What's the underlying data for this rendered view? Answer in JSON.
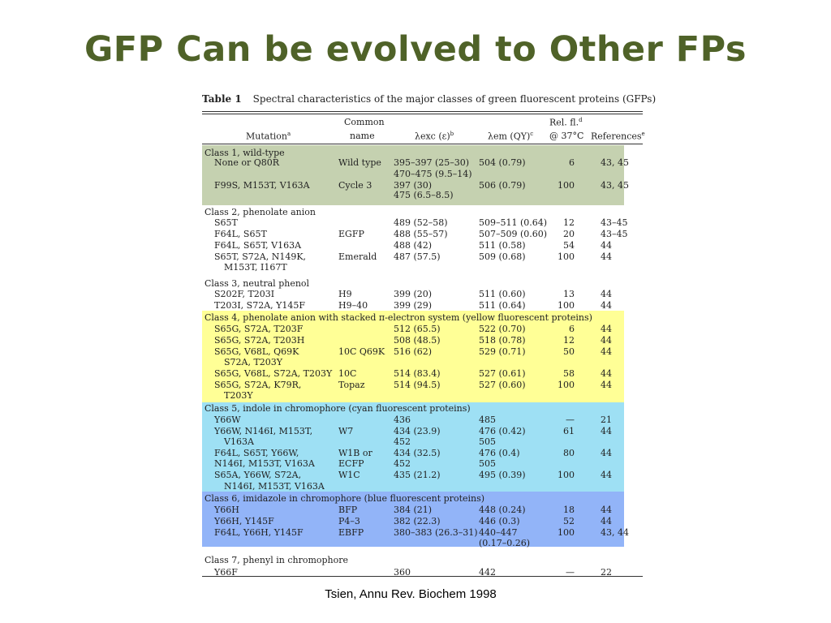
{
  "slide": {
    "title": "GFP Can be evolved to Other FPs",
    "source": "Tsien, Annu Rev. Biochem 1998"
  },
  "table": {
    "label": "Table 1",
    "caption": "Spectral characteristics of the major classes of green fluorescent proteins (GFPs)",
    "headers": {
      "mutation": "Mutation",
      "mutation_sup": "a",
      "common_1": "Common",
      "common_2": "name",
      "exc": "λexc (ε)",
      "exc_sup": "b",
      "em": "λem (QY)",
      "em_sup": "c",
      "relfl_1": "Rel. fl.",
      "relfl_1_sup": "d",
      "relfl_2": "@ 37°C",
      "refs": "References",
      "refs_sup": "e"
    },
    "band_colors": {
      "class1": "#c5d1b0",
      "class4": "#ffff96",
      "class5": "#9ee0f4",
      "class6": "#92b4f8"
    },
    "rows": [
      {
        "mut": "Class 1, wild-type",
        "header": true
      },
      {
        "mut": "None or Q80R",
        "name": "Wild type",
        "exc": "395–397 (25–30)",
        "em": "504 (0.79)",
        "fl": "6",
        "ref": "43, 45"
      },
      {
        "mut": "",
        "exc": "470–475 (9.5–14)"
      },
      {
        "mut": "F99S, M153T, V163A",
        "name": "Cycle 3",
        "exc": "397 (30)",
        "em": "506 (0.79)",
        "fl": "100",
        "ref": "43, 45"
      },
      {
        "mut": "",
        "exc": "475 (6.5–8.5)"
      },
      {
        "mut": "Class 2, phenolate anion",
        "header": true
      },
      {
        "mut": "S65T",
        "exc": "489 (52–58)",
        "em": "509–511 (0.64)",
        "fl": "12",
        "ref": "43–45"
      },
      {
        "mut": "F64L, S65T",
        "name": "EGFP",
        "exc": "488 (55–57)",
        "em": "507–509 (0.60)",
        "fl": "20",
        "ref": "43–45"
      },
      {
        "mut": "F64L, S65T, V163A",
        "exc": "488 (42)",
        "em": "511 (0.58)",
        "fl": "54",
        "ref": "44"
      },
      {
        "mut": "S65T, S72A, N149K,",
        "name": "Emerald",
        "exc": "487 (57.5)",
        "em": "509 (0.68)",
        "fl": "100",
        "ref": "44"
      },
      {
        "mut": "M153T, I167T",
        "cont": true
      },
      {
        "mut": "Class 3, neutral phenol",
        "header": true
      },
      {
        "mut": "S202F, T203I",
        "name": "H9",
        "exc": "399 (20)",
        "em": "511 (0.60)",
        "fl": "13",
        "ref": "44"
      },
      {
        "mut": "T203I, S72A, Y145F",
        "name": "H9–40",
        "exc": "399 (29)",
        "em": "511 (0.64)",
        "fl": "100",
        "ref": "44"
      },
      {
        "mut": "Class 4, phenolate anion with stacked π-electron system (yellow fluorescent proteins)",
        "header": true
      },
      {
        "mut": "S65G, S72A, T203F",
        "exc": "512 (65.5)",
        "em": "522 (0.70)",
        "fl": "6",
        "ref": "44"
      },
      {
        "mut": "S65G, S72A, T203H",
        "exc": "508 (48.5)",
        "em": "518 (0.78)",
        "fl": "12",
        "ref": "44"
      },
      {
        "mut": "S65G, V68L, Q69K",
        "name": "10C Q69K",
        "exc": "516 (62)",
        "em": "529 (0.71)",
        "fl": "50",
        "ref": "44"
      },
      {
        "mut": "S72A, T203Y",
        "cont": true
      },
      {
        "mut": "S65G, V68L, S72A, T203Y",
        "name": "10C",
        "exc": "514 (83.4)",
        "em": "527 (0.61)",
        "fl": "58",
        "ref": "44"
      },
      {
        "mut": "S65G, S72A, K79R,",
        "name": "Topaz",
        "exc": "514 (94.5)",
        "em": "527 (0.60)",
        "fl": "100",
        "ref": "44"
      },
      {
        "mut": "T203Y",
        "cont": true
      },
      {
        "mut": "Class 5, indole in chromophore (cyan fluorescent proteins)",
        "header": true
      },
      {
        "mut": "Y66W",
        "exc": "436",
        "em": "485",
        "fl": "—",
        "ref": "21"
      },
      {
        "mut": "Y66W, N146I, M153T,",
        "name": "W7",
        "exc": "434 (23.9)",
        "em": "476 (0.42)",
        "fl": "61",
        "ref": "44"
      },
      {
        "mut": "V163A",
        "cont": true,
        "exc": "452",
        "em": "505"
      },
      {
        "mut": "F64L, S65T, Y66W,",
        "name": "W1B or",
        "exc": "434 (32.5)",
        "em": "476 (0.4)",
        "fl": "80",
        "ref": "44"
      },
      {
        "mut": "N146I, M153T, V163A",
        "name": "ECFP",
        "exc": "452",
        "em": "505"
      },
      {
        "mut": "S65A, Y66W, S72A,",
        "name": "W1C",
        "exc": "435 (21.2)",
        "em": "495 (0.39)",
        "fl": "100",
        "ref": "44"
      },
      {
        "mut": "N146I, M153T, V163A",
        "cont": true
      },
      {
        "mut": "Class 6, imidazole in chromophore (blue fluorescent proteins)",
        "header": true
      },
      {
        "mut": "Y66H",
        "name": "BFP",
        "exc": "384 (21)",
        "em": "448 (0.24)",
        "fl": "18",
        "ref": "44"
      },
      {
        "mut": "Y66H, Y145F",
        "name": "P4–3",
        "exc": "382 (22.3)",
        "em": "446 (0.3)",
        "fl": "52",
        "ref": "44"
      },
      {
        "mut": "F64L, Y66H, Y145F",
        "name": "EBFP",
        "exc": "380–383 (26.3–31)",
        "em": "440–447",
        "fl": "100",
        "ref": "43, 44"
      },
      {
        "mut": "",
        "em": "(0.17–0.26)"
      },
      {
        "mut": "Class 7, phenyl in chromophore",
        "header": true
      },
      {
        "mut": "Y66F",
        "exc": "360",
        "em": "442",
        "fl": "—",
        "ref": "22"
      }
    ]
  }
}
